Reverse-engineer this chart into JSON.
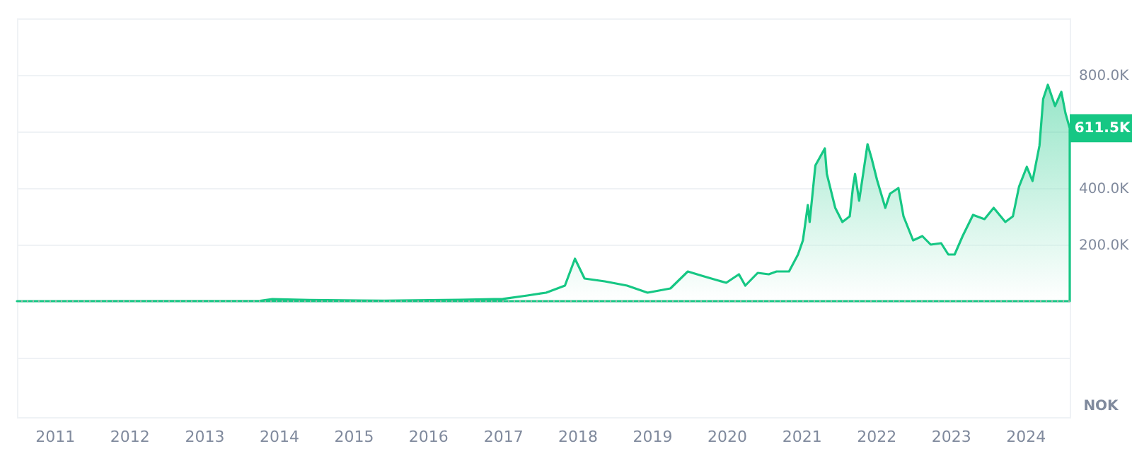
{
  "chart_data": {
    "type": "area",
    "x": [
      "2010-07-01",
      "2013-10-01",
      "2013-12-01",
      "2014-06-01",
      "2015-06-01",
      "2016-06-01",
      "2017-01-01",
      "2017-05-01",
      "2017-08-01",
      "2017-11-01",
      "2017-12-20",
      "2018-02-05",
      "2018-05-15",
      "2018-09-01",
      "2018-12-10",
      "2019-04-01",
      "2019-06-25",
      "2019-09-01",
      "2019-12-30",
      "2020-03-01",
      "2020-04-01",
      "2020-06-01",
      "2020-07-25",
      "2020-09-01",
      "2020-11-01",
      "2020-12-15",
      "2021-01-08",
      "2021-02-01",
      "2021-02-10",
      "2021-03-10",
      "2021-04-25",
      "2021-05-05",
      "2021-06-15",
      "2021-07-20",
      "2021-08-25",
      "2021-09-10",
      "2021-09-20",
      "2021-10-10",
      "2021-11-20",
      "2021-12-10",
      "2022-01-05",
      "2022-02-15",
      "2022-03-10",
      "2022-04-20",
      "2022-05-15",
      "2022-07-01",
      "2022-08-15",
      "2022-09-25",
      "2022-11-15",
      "2022-12-20",
      "2023-01-20",
      "2023-02-28",
      "2023-04-20",
      "2023-06-15",
      "2023-07-30",
      "2023-09-25",
      "2023-11-01",
      "2023-12-01",
      "2024-01-08",
      "2024-02-05",
      "2024-03-10",
      "2024-03-28",
      "2024-04-20",
      "2024-05-25",
      "2024-06-25",
      "2024-07-15",
      "2024-08-05"
    ],
    "series": [
      {
        "color": "#16c784",
        "values": [
          0,
          1000,
          7000,
          4000,
          1500,
          4500,
          8000,
          20000,
          30000,
          55000,
          150000,
          80000,
          70000,
          55000,
          30000,
          45000,
          105000,
          90000,
          65000,
          95000,
          55000,
          100000,
          95000,
          105000,
          105000,
          165000,
          215000,
          340000,
          280000,
          480000,
          540000,
          450000,
          330000,
          280000,
          300000,
          405000,
          450000,
          355000,
          555000,
          505000,
          430000,
          330000,
          380000,
          400000,
          300000,
          215000,
          230000,
          200000,
          205000,
          165000,
          165000,
          230000,
          305000,
          290000,
          330000,
          280000,
          300000,
          405000,
          475000,
          425000,
          550000,
          715000,
          765000,
          690000,
          740000,
          665000,
          611500
        ]
      }
    ],
    "xlim": [
      "2010-07-01",
      "2024-08-05"
    ],
    "xticks": [
      "2011",
      "2012",
      "2013",
      "2014",
      "2015",
      "2016",
      "2017",
      "2018",
      "2019",
      "2020",
      "2021",
      "2022",
      "2023",
      "2024"
    ],
    "ylim": [
      -410000,
      1000000
    ],
    "yticks": [
      {
        "value": -200000,
        "label": null
      },
      {
        "value": 0,
        "label": null
      },
      {
        "value": 200000,
        "label": "200.0K"
      },
      {
        "value": 400000,
        "label": "400.0K"
      },
      {
        "value": 600000,
        "label": null
      },
      {
        "value": 800000,
        "label": "800.0K"
      },
      {
        "value": 1000000,
        "label": null
      }
    ],
    "grid": "y",
    "ref_lines": [
      {
        "axis": "y",
        "value": 0,
        "line_style": "dotted",
        "color": "#aaaaaa"
      }
    ],
    "annotations": [
      {
        "text": "611.5K",
        "x": "2024-08-05",
        "y": 611500
      },
      "NOK"
    ]
  }
}
